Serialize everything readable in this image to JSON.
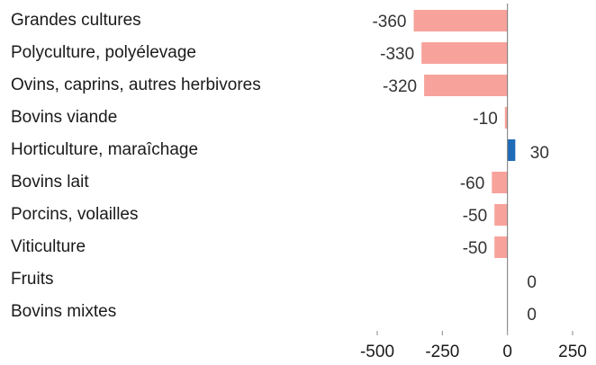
{
  "chart_data": {
    "type": "bar",
    "orientation": "horizontal",
    "categories": [
      "Grandes cultures",
      "Polyculture, polyélevage",
      "Ovins, caprins, autres herbivores",
      "Bovins viande",
      "Horticulture, maraîchage",
      "Bovins lait",
      "Porcins, volailles",
      "Viticulture",
      "Fruits",
      "Bovins mixtes"
    ],
    "values": [
      -360,
      -330,
      -320,
      -10,
      30,
      -60,
      -50,
      -50,
      0,
      0
    ],
    "colors": [
      "#f7a39c",
      "#f7a39c",
      "#f7a39c",
      "#f7a39c",
      "#1f6bb8",
      "#f7a39c",
      "#f7a39c",
      "#f7a39c",
      "#f7a39c",
      "#f7a39c"
    ],
    "xlim": [
      -500,
      250
    ],
    "xticks": [
      -500,
      -250,
      0,
      250
    ]
  }
}
